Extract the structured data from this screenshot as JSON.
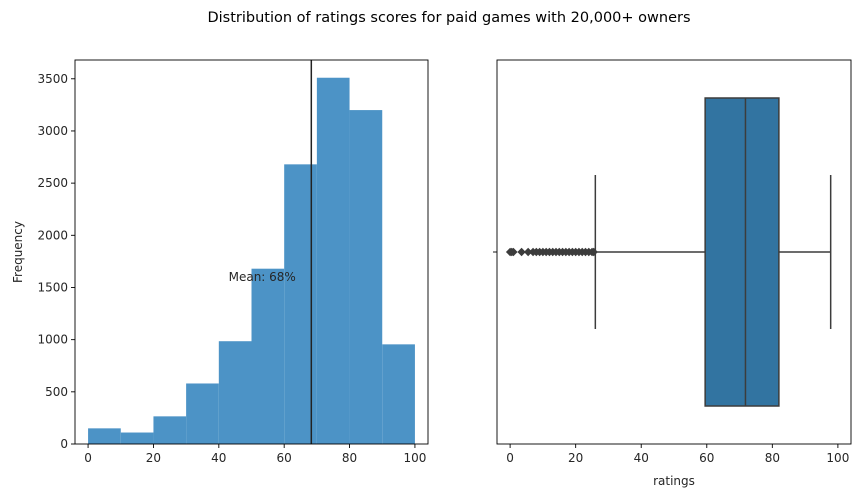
{
  "figure": {
    "title": "Distribution of ratings scores for paid games with 20,000+ owners"
  },
  "chart_data": [
    {
      "type": "histogram",
      "title": "",
      "xlabel": "",
      "ylabel": "Frequency",
      "xlim": [
        -4,
        104
      ],
      "ylim": [
        0,
        3680
      ],
      "xticks": [
        0,
        20,
        40,
        60,
        80,
        100
      ],
      "yticks": [
        0,
        500,
        1000,
        1500,
        2000,
        2500,
        3000,
        3500
      ],
      "bin_edges": [
        0,
        10,
        20,
        30,
        40,
        50,
        60,
        70,
        80,
        90,
        100
      ],
      "values": [
        150,
        110,
        265,
        580,
        985,
        1680,
        2680,
        3510,
        3200,
        955
      ],
      "bar_color": "#4c93c6",
      "mean_line": {
        "x": 68.3,
        "color": "#222222"
      },
      "annotation": {
        "text": "Mean: 68%",
        "x": 43,
        "y": 1600
      }
    },
    {
      "type": "box",
      "title": "",
      "xlabel": "ratings",
      "ylabel": "",
      "xlim": [
        -4,
        104
      ],
      "xticks": [
        0,
        20,
        40,
        60,
        80,
        100
      ],
      "box": {
        "q1": 59.5,
        "median": 71.8,
        "q3": 82.0,
        "whisker_low": 26.0,
        "whisker_high": 97.8,
        "color": "#3274a1",
        "edge_color": "#3c3c3c"
      },
      "outliers": [
        0,
        0.5,
        1,
        3.5,
        5.5,
        7,
        8,
        9,
        10,
        11,
        12,
        13,
        14,
        15,
        16,
        17,
        18,
        19,
        20,
        21,
        22,
        23,
        24,
        25,
        25.5
      ]
    }
  ]
}
